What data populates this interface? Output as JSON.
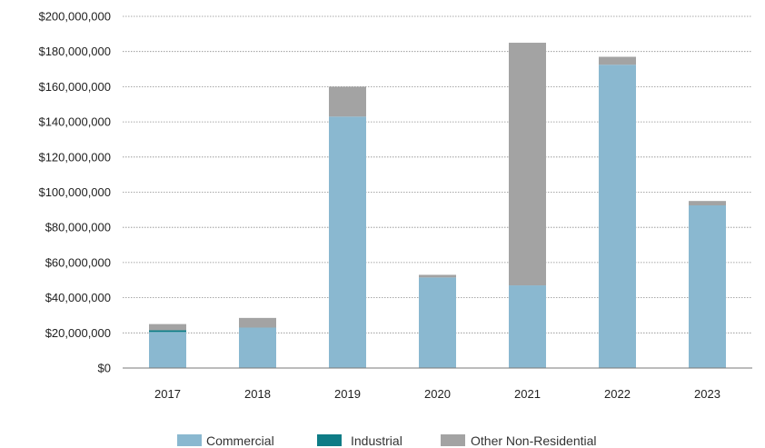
{
  "chart_data": {
    "type": "bar",
    "stacked": true,
    "title": "",
    "xlabel": "",
    "ylabel": "",
    "categories": [
      "2017",
      "2018",
      "2019",
      "2020",
      "2021",
      "2022",
      "2023"
    ],
    "ylim": [
      0,
      200000000
    ],
    "yticks": [
      0,
      20000000,
      40000000,
      60000000,
      80000000,
      100000000,
      120000000,
      140000000,
      160000000,
      180000000,
      200000000
    ],
    "ytick_labels": [
      "$0",
      "$20,000,000",
      "$40,000,000",
      "$60,000,000",
      "$80,000,000",
      "$100,000,000",
      "$120,000,000",
      "$140,000,000",
      "$160,000,000",
      "$180,000,000",
      "$200,000,000"
    ],
    "grid": "horizontal dotted",
    "legend_position": "bottom",
    "series": [
      {
        "name": "Commercial",
        "color": "#8ab8d0",
        "values": [
          20500000,
          23000000,
          143000000,
          51500000,
          47000000,
          172500000,
          92500000
        ]
      },
      {
        "name": "Industrial",
        "color": "#0e7c86",
        "values": [
          1000000,
          0,
          0,
          0,
          0,
          0,
          0
        ]
      },
      {
        "name": "Other Non-Residential",
        "color": "#a3a3a3",
        "values": [
          3500000,
          5500000,
          17000000,
          1500000,
          138000000,
          4500000,
          2500000
        ]
      }
    ]
  }
}
